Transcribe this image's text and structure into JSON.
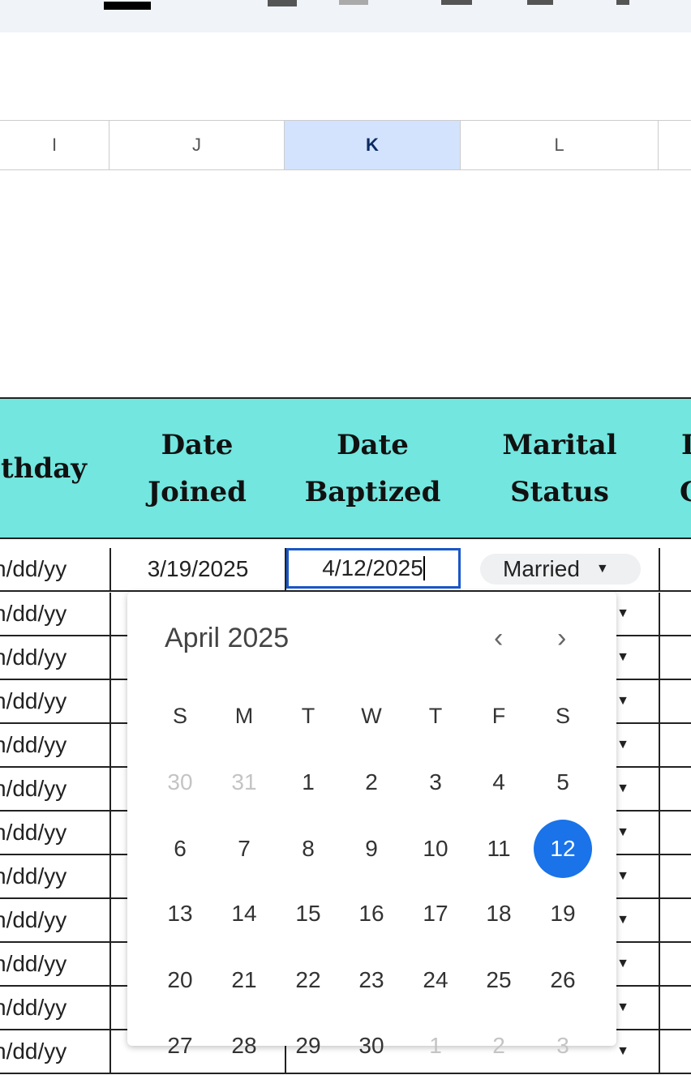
{
  "columns": [
    {
      "label": "I"
    },
    {
      "label": "J"
    },
    {
      "label": "K",
      "selected": true
    },
    {
      "label": "L"
    }
  ],
  "headers": [
    "thday",
    "Date Joined",
    "Date Baptized",
    "Marital Status",
    "I C"
  ],
  "first_row": {
    "birthday": "n/dd/yy",
    "date_joined": "3/19/2025",
    "date_baptized": "4/12/2025",
    "marital_status": "Married"
  },
  "birthday_placeholder": "n/dd/yy",
  "datepicker": {
    "title": "April 2025",
    "prev_icon": "chevron-left-icon",
    "next_icon": "chevron-right-icon",
    "weekdays": [
      "S",
      "M",
      "T",
      "W",
      "T",
      "F",
      "S"
    ],
    "weeks": [
      [
        "30",
        "31",
        "1",
        "2",
        "3",
        "4",
        "5"
      ],
      [
        "6",
        "7",
        "8",
        "9",
        "10",
        "11",
        "12"
      ],
      [
        "13",
        "14",
        "15",
        "16",
        "17",
        "18",
        "19"
      ],
      [
        "20",
        "21",
        "22",
        "23",
        "24",
        "25",
        "26"
      ],
      [
        "27",
        "28",
        "29",
        "30",
        "1",
        "2",
        "3"
      ]
    ],
    "selected": "12",
    "accent": "#1a73e8"
  },
  "colors": {
    "header_fill": "#72e6df",
    "selected_column": "#d3e3fd"
  }
}
